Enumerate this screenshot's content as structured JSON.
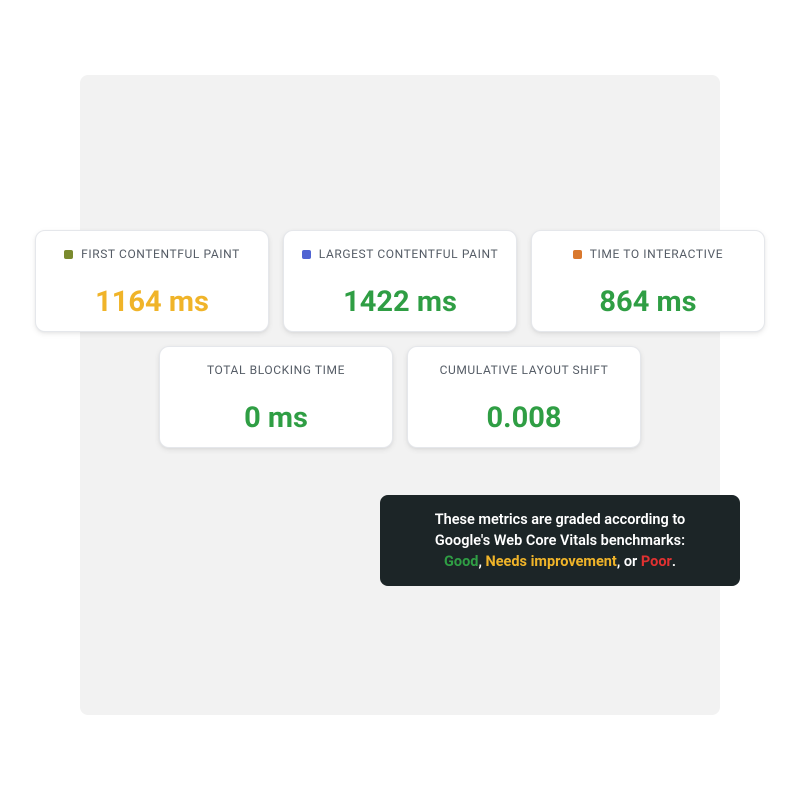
{
  "colors": {
    "panel_bg": "#f2f2f2",
    "card_bg": "#ffffff",
    "card_border": "#e5e7eb",
    "title_text": "#555c66",
    "good": "#2f9e44",
    "needs_improvement": "#f0b429",
    "poor": "#e03131",
    "tooltip_bg": "#1c2527",
    "tooltip_text": "#ffffff"
  },
  "metrics": [
    {
      "key": "fcp",
      "title": "FIRST CONTENTFUL PAINT",
      "value": "1164 ms",
      "value_color": "#f0b429",
      "swatch_color": "#7a8a2e",
      "show_swatch": true,
      "row": 1
    },
    {
      "key": "lcp",
      "title": "LARGEST CONTENTFUL PAINT",
      "value": "1422 ms",
      "value_color": "#2f9e44",
      "swatch_color": "#4f63d2",
      "show_swatch": true,
      "row": 1
    },
    {
      "key": "tti",
      "title": "TIME TO INTERACTIVE",
      "value": "864 ms",
      "value_color": "#2f9e44",
      "swatch_color": "#d9782d",
      "show_swatch": true,
      "row": 1
    },
    {
      "key": "tbt",
      "title": "TOTAL BLOCKING TIME",
      "value": "0 ms",
      "value_color": "#2f9e44",
      "swatch_color": "",
      "show_swatch": false,
      "row": 2
    },
    {
      "key": "cls",
      "title": "CUMULATIVE LAYOUT SHIFT",
      "value": "0.008",
      "value_color": "#2f9e44",
      "swatch_color": "",
      "show_swatch": false,
      "row": 2
    }
  ],
  "tooltip": {
    "line1": "These metrics are graded according to",
    "line2": "Google's Web Core Vitals benchmarks:",
    "good_label": "Good",
    "sep1": ", ",
    "needs_label": "Needs improvement",
    "sep2": ", or ",
    "poor_label": "Poor",
    "period": "."
  }
}
